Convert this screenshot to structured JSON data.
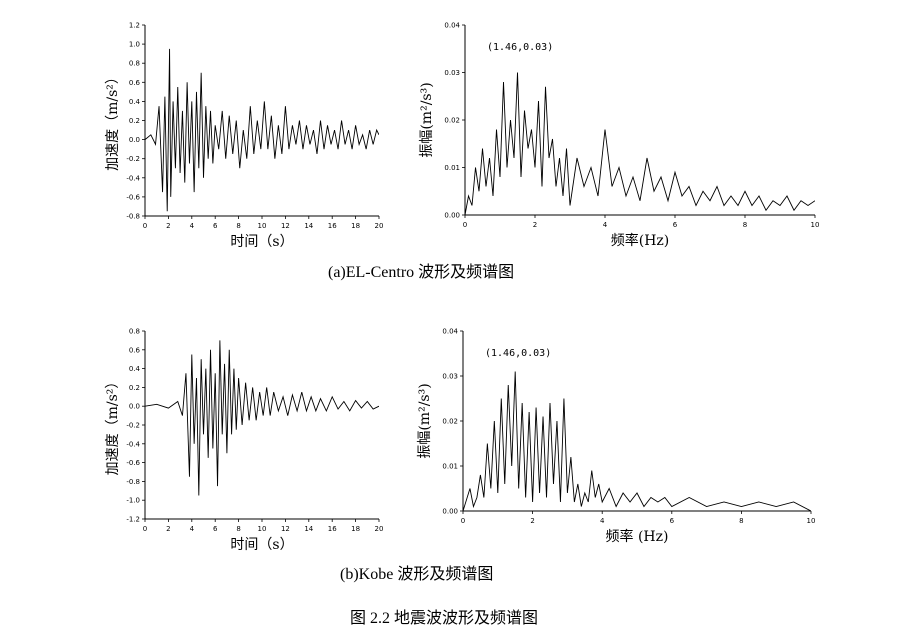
{
  "captions": {
    "a": "(a)EL-Centro 波形及频谱图",
    "b": "(b)Kobe 波形及频谱图",
    "figure": "图 2.2 地震波波形及频谱图"
  },
  "chart_data": [
    {
      "id": "a-wave",
      "type": "line",
      "xlabel": "时间（s）",
      "ylabel": "加速度（m/s²）",
      "xlim": [
        0,
        20
      ],
      "ylim": [
        -0.8,
        1.2
      ],
      "xticks": [
        0,
        2,
        4,
        6,
        8,
        10,
        12,
        14,
        16,
        18,
        20
      ],
      "yticks": [
        -0.8,
        -0.6,
        -0.4,
        -0.2,
        0.0,
        0.2,
        0.4,
        0.6,
        0.8,
        1.0,
        1.2
      ],
      "x": [
        0,
        0.5,
        0.9,
        1.2,
        1.5,
        1.7,
        1.9,
        2.1,
        2.2,
        2.4,
        2.6,
        2.8,
        3.0,
        3.2,
        3.4,
        3.6,
        3.8,
        4.0,
        4.2,
        4.4,
        4.6,
        4.8,
        5.0,
        5.2,
        5.4,
        5.6,
        5.8,
        6.0,
        6.3,
        6.6,
        6.9,
        7.2,
        7.5,
        7.8,
        8.1,
        8.4,
        8.7,
        9.0,
        9.3,
        9.6,
        9.9,
        10.2,
        10.5,
        10.8,
        11.1,
        11.4,
        11.7,
        12.0,
        12.3,
        12.6,
        12.9,
        13.2,
        13.5,
        13.8,
        14.1,
        14.4,
        14.7,
        15.0,
        15.3,
        15.6,
        15.9,
        16.2,
        16.5,
        16.8,
        17.1,
        17.4,
        17.7,
        18.0,
        18.3,
        18.6,
        18.9,
        19.2,
        19.5,
        19.8,
        20.0
      ],
      "y": [
        0,
        0.05,
        -0.05,
        0.35,
        -0.55,
        0.45,
        -0.75,
        0.95,
        -0.6,
        0.4,
        -0.3,
        0.55,
        -0.35,
        0.3,
        -0.45,
        0.6,
        -0.25,
        0.4,
        -0.55,
        0.5,
        -0.3,
        0.7,
        -0.4,
        0.35,
        -0.2,
        0.3,
        -0.25,
        0.15,
        -0.1,
        0.3,
        -0.2,
        0.25,
        -0.15,
        0.2,
        -0.3,
        0.1,
        -0.2,
        0.35,
        -0.15,
        0.2,
        -0.1,
        0.4,
        -0.1,
        0.25,
        -0.2,
        0.15,
        -0.15,
        0.35,
        -0.1,
        0.15,
        -0.05,
        0.2,
        -0.1,
        0.15,
        -0.05,
        0.1,
        -0.15,
        0.2,
        -0.1,
        0.15,
        -0.05,
        0.1,
        -0.1,
        0.2,
        -0.05,
        0.1,
        -0.1,
        0.15,
        -0.05,
        0.05,
        -0.1,
        0.1,
        -0.05,
        0.1,
        0.05
      ]
    },
    {
      "id": "a-spectrum",
      "type": "line",
      "xlabel": "频率(Hz)",
      "ylabel": "振幅(m²/s³)",
      "xlim": [
        0,
        10
      ],
      "ylim": [
        0,
        0.04
      ],
      "xticks": [
        0,
        2,
        4,
        6,
        8,
        10
      ],
      "yticks": [
        0.0,
        0.01,
        0.02,
        0.03,
        0.04
      ],
      "annotation": {
        "text": "(1.46,0.03)"
      },
      "x": [
        0,
        0.1,
        0.2,
        0.3,
        0.4,
        0.5,
        0.6,
        0.7,
        0.8,
        0.9,
        1.0,
        1.1,
        1.2,
        1.3,
        1.4,
        1.5,
        1.6,
        1.7,
        1.8,
        1.9,
        2.0,
        2.1,
        2.2,
        2.3,
        2.4,
        2.5,
        2.6,
        2.7,
        2.8,
        2.9,
        3.0,
        3.2,
        3.4,
        3.6,
        3.8,
        4.0,
        4.2,
        4.4,
        4.6,
        4.8,
        5.0,
        5.2,
        5.4,
        5.6,
        5.8,
        6.0,
        6.2,
        6.4,
        6.6,
        6.8,
        7.0,
        7.2,
        7.4,
        7.6,
        7.8,
        8.0,
        8.2,
        8.4,
        8.6,
        8.8,
        9.0,
        9.2,
        9.4,
        9.6,
        9.8,
        10.0
      ],
      "y": [
        0.0,
        0.004,
        0.002,
        0.01,
        0.005,
        0.014,
        0.006,
        0.012,
        0.004,
        0.018,
        0.008,
        0.028,
        0.01,
        0.02,
        0.012,
        0.03,
        0.008,
        0.022,
        0.014,
        0.018,
        0.01,
        0.024,
        0.006,
        0.027,
        0.012,
        0.016,
        0.006,
        0.012,
        0.004,
        0.014,
        0.002,
        0.012,
        0.006,
        0.01,
        0.004,
        0.018,
        0.006,
        0.01,
        0.004,
        0.008,
        0.003,
        0.012,
        0.005,
        0.008,
        0.003,
        0.009,
        0.004,
        0.006,
        0.002,
        0.005,
        0.003,
        0.006,
        0.002,
        0.004,
        0.002,
        0.005,
        0.002,
        0.004,
        0.001,
        0.003,
        0.002,
        0.004,
        0.001,
        0.003,
        0.002,
        0.003
      ]
    },
    {
      "id": "b-wave",
      "type": "line",
      "xlabel": "时间（s）",
      "ylabel": "加速度（m/s²）",
      "xlim": [
        0,
        20
      ],
      "ylim": [
        -1.2,
        0.8
      ],
      "xticks": [
        0,
        2,
        4,
        6,
        8,
        10,
        12,
        14,
        16,
        18,
        20
      ],
      "yticks": [
        -1.2,
        -1.0,
        -0.8,
        -0.6,
        -0.4,
        -0.2,
        0.0,
        0.2,
        0.4,
        0.6,
        0.8
      ],
      "x": [
        0,
        1,
        2,
        2.8,
        3.2,
        3.5,
        3.8,
        4.0,
        4.2,
        4.4,
        4.6,
        4.8,
        5.0,
        5.2,
        5.4,
        5.6,
        5.8,
        6.0,
        6.2,
        6.4,
        6.6,
        6.8,
        7.0,
        7.2,
        7.4,
        7.6,
        7.8,
        8.0,
        8.3,
        8.6,
        8.9,
        9.2,
        9.5,
        9.8,
        10.1,
        10.4,
        10.7,
        11.0,
        11.4,
        11.8,
        12.2,
        12.6,
        13.0,
        13.4,
        13.8,
        14.2,
        14.6,
        15.0,
        15.5,
        16.0,
        16.5,
        17.0,
        17.5,
        18.0,
        18.5,
        19.0,
        19.5,
        20.0
      ],
      "y": [
        0,
        0.02,
        -0.02,
        0.05,
        -0.1,
        0.35,
        -0.75,
        0.55,
        -0.4,
        0.3,
        -0.95,
        0.5,
        -0.3,
        0.4,
        -0.55,
        0.6,
        -0.45,
        0.35,
        -0.85,
        0.7,
        -0.3,
        0.45,
        -0.5,
        0.6,
        -0.3,
        0.4,
        -0.25,
        0.3,
        -0.2,
        0.25,
        -0.15,
        0.2,
        -0.15,
        0.15,
        -0.1,
        0.2,
        -0.1,
        0.15,
        -0.05,
        0.1,
        -0.1,
        0.12,
        -0.05,
        0.15,
        -0.05,
        0.1,
        -0.05,
        0.08,
        -0.05,
        0.1,
        -0.03,
        0.05,
        -0.05,
        0.06,
        -0.02,
        0.05,
        -0.03,
        0.0
      ]
    },
    {
      "id": "b-spectrum",
      "type": "line",
      "xlabel": "频率 (Hz)",
      "ylabel": "振幅(m²/s³)",
      "xlim": [
        0,
        10
      ],
      "ylim": [
        0,
        0.04
      ],
      "xticks": [
        0,
        2,
        4,
        6,
        8,
        10
      ],
      "yticks": [
        0.0,
        0.01,
        0.02,
        0.03,
        0.04
      ],
      "annotation": {
        "text": "(1.46,0.03)"
      },
      "x": [
        0,
        0.2,
        0.3,
        0.4,
        0.5,
        0.6,
        0.7,
        0.8,
        0.9,
        1.0,
        1.1,
        1.2,
        1.3,
        1.4,
        1.5,
        1.6,
        1.7,
        1.8,
        1.9,
        2.0,
        2.1,
        2.2,
        2.3,
        2.4,
        2.5,
        2.6,
        2.7,
        2.8,
        2.9,
        3.0,
        3.1,
        3.2,
        3.3,
        3.4,
        3.5,
        3.6,
        3.7,
        3.8,
        3.9,
        4.0,
        4.2,
        4.4,
        4.6,
        4.8,
        5.0,
        5.2,
        5.4,
        5.6,
        5.8,
        6.0,
        6.5,
        7.0,
        7.5,
        8.0,
        8.5,
        9.0,
        9.5,
        10.0
      ],
      "y": [
        0,
        0.005,
        0.001,
        0.003,
        0.008,
        0.003,
        0.015,
        0.005,
        0.02,
        0.004,
        0.025,
        0.006,
        0.028,
        0.01,
        0.031,
        0.005,
        0.024,
        0.003,
        0.022,
        0.002,
        0.023,
        0.004,
        0.021,
        0.003,
        0.024,
        0.006,
        0.02,
        0.002,
        0.025,
        0.004,
        0.012,
        0.002,
        0.006,
        0.001,
        0.004,
        0.002,
        0.009,
        0.003,
        0.006,
        0.002,
        0.005,
        0.001,
        0.004,
        0.002,
        0.004,
        0.001,
        0.003,
        0.002,
        0.003,
        0.001,
        0.003,
        0.001,
        0.002,
        0.001,
        0.002,
        0.001,
        0.002,
        0.0
      ]
    }
  ]
}
